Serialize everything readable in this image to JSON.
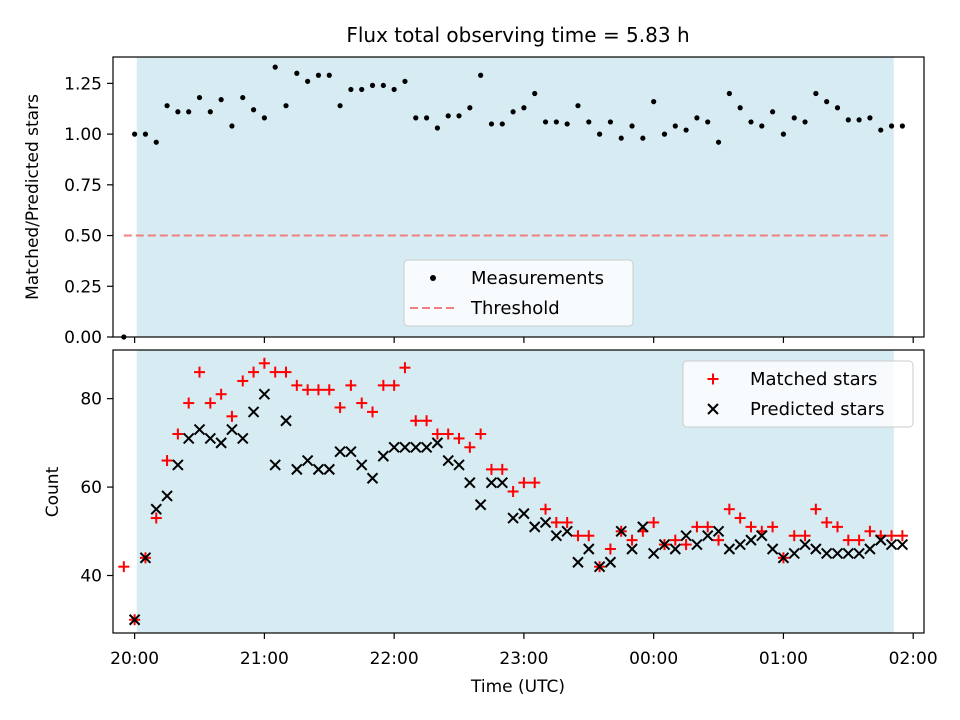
{
  "chart_data": {
    "type": "scatter",
    "title": "Flux total observing time = 5.83 h",
    "xlabel": "Time (UTC)",
    "x_ticks": [
      "20:00",
      "21:00",
      "22:00",
      "23:00",
      "00:00",
      "01:00",
      "02:00"
    ],
    "x_range": [
      "19:50",
      "02:05"
    ],
    "observing_window": [
      "20:01",
      "01:51"
    ],
    "colors": {
      "window": "#add8e6",
      "measurements": "#000000",
      "threshold": "#f08080",
      "matched": "#ff0000",
      "predicted": "#000000"
    },
    "top_panel": {
      "ylabel": "Matched/Predicted stars",
      "ylim": [
        0,
        1.38
      ],
      "y_ticks": [
        "0.00",
        "0.25",
        "0.50",
        "0.75",
        "1.00",
        "1.25"
      ],
      "legend_location": "lower center",
      "series": [
        {
          "name": "Measurements",
          "marker": "dot",
          "x": [
            "19:55",
            "20:00",
            "20:05",
            "20:10",
            "20:15",
            "20:20",
            "20:25",
            "20:30",
            "20:35",
            "20:40",
            "20:45",
            "20:50",
            "20:55",
            "21:00",
            "21:05",
            "21:10",
            "21:15",
            "21:20",
            "21:25",
            "21:30",
            "21:35",
            "21:40",
            "21:45",
            "21:50",
            "21:55",
            "22:00",
            "22:05",
            "22:10",
            "22:15",
            "22:20",
            "22:25",
            "22:30",
            "22:35",
            "22:40",
            "22:45",
            "22:50",
            "22:55",
            "23:00",
            "23:05",
            "23:10",
            "23:15",
            "23:20",
            "23:25",
            "23:30",
            "23:35",
            "23:40",
            "23:45",
            "23:50",
            "23:55",
            "00:00",
            "00:05",
            "00:10",
            "00:15",
            "00:20",
            "00:25",
            "00:30",
            "00:35",
            "00:40",
            "00:45",
            "00:50",
            "00:55",
            "01:00",
            "01:05",
            "01:10",
            "01:15",
            "01:20",
            "01:25",
            "01:30",
            "01:35",
            "01:40",
            "01:45",
            "01:50",
            "01:55"
          ],
          "y": [
            0.0,
            1.0,
            1.0,
            0.96,
            1.14,
            1.11,
            1.11,
            1.18,
            1.11,
            1.17,
            1.04,
            1.18,
            1.12,
            1.08,
            1.33,
            1.14,
            1.3,
            1.26,
            1.29,
            1.29,
            1.14,
            1.22,
            1.22,
            1.24,
            1.24,
            1.22,
            1.26,
            1.08,
            1.08,
            1.03,
            1.09,
            1.09,
            1.13,
            1.29,
            1.05,
            1.05,
            1.11,
            1.13,
            1.2,
            1.06,
            1.06,
            1.05,
            1.14,
            1.06,
            1.0,
            1.06,
            0.98,
            1.04,
            0.98,
            1.16,
            1.0,
            1.04,
            1.02,
            1.08,
            1.06,
            0.96,
            1.2,
            1.13,
            1.06,
            1.04,
            1.11,
            1.0,
            1.08,
            1.06,
            1.2,
            1.16,
            1.13,
            1.07,
            1.07,
            1.08,
            1.02,
            1.04,
            1.04
          ]
        },
        {
          "name": "Threshold",
          "style": "dashed",
          "x": [
            "19:55",
            "01:50"
          ],
          "y": [
            0.5,
            0.5
          ]
        }
      ]
    },
    "bottom_panel": {
      "ylabel": "Count",
      "ylim": [
        27,
        91
      ],
      "y_ticks": [
        "40",
        "60",
        "80"
      ],
      "legend_location": "upper right",
      "series": [
        {
          "name": "Matched stars",
          "marker": "plus",
          "x": [
            "19:55",
            "20:00",
            "20:05",
            "20:10",
            "20:15",
            "20:20",
            "20:25",
            "20:30",
            "20:35",
            "20:40",
            "20:45",
            "20:50",
            "20:55",
            "21:00",
            "21:05",
            "21:10",
            "21:15",
            "21:20",
            "21:25",
            "21:30",
            "21:35",
            "21:40",
            "21:45",
            "21:50",
            "21:55",
            "22:00",
            "22:05",
            "22:10",
            "22:15",
            "22:20",
            "22:25",
            "22:30",
            "22:35",
            "22:40",
            "22:45",
            "22:50",
            "22:55",
            "23:00",
            "23:05",
            "23:10",
            "23:15",
            "23:20",
            "23:25",
            "23:30",
            "23:35",
            "23:40",
            "23:45",
            "23:50",
            "23:55",
            "00:00",
            "00:05",
            "00:10",
            "00:15",
            "00:20",
            "00:25",
            "00:30",
            "00:35",
            "00:40",
            "00:45",
            "00:50",
            "00:55",
            "01:00",
            "01:05",
            "01:10",
            "01:15",
            "01:20",
            "01:25",
            "01:30",
            "01:35",
            "01:40",
            "01:45",
            "01:50",
            "01:55"
          ],
          "y": [
            42,
            30,
            44,
            53,
            66,
            72,
            79,
            86,
            79,
            81,
            76,
            84,
            86,
            88,
            86,
            86,
            83,
            82,
            82,
            82,
            78,
            83,
            79,
            77,
            83,
            83,
            87,
            75,
            75,
            72,
            72,
            71,
            69,
            72,
            64,
            64,
            59,
            61,
            61,
            55,
            52,
            52,
            49,
            49,
            42,
            46,
            50,
            48,
            50,
            52,
            47,
            48,
            47,
            51,
            51,
            48,
            55,
            53,
            51,
            50,
            51,
            44,
            49,
            49,
            55,
            52,
            51,
            48,
            48,
            50,
            49,
            49,
            49
          ]
        },
        {
          "name": "Predicted stars",
          "marker": "x",
          "x": [
            "20:00",
            "20:05",
            "20:10",
            "20:15",
            "20:20",
            "20:25",
            "20:30",
            "20:35",
            "20:40",
            "20:45",
            "20:50",
            "20:55",
            "21:00",
            "21:05",
            "21:10",
            "21:15",
            "21:20",
            "21:25",
            "21:30",
            "21:35",
            "21:40",
            "21:45",
            "21:50",
            "21:55",
            "22:00",
            "22:05",
            "22:10",
            "22:15",
            "22:20",
            "22:25",
            "22:30",
            "22:35",
            "22:40",
            "22:45",
            "22:50",
            "22:55",
            "23:00",
            "23:05",
            "23:10",
            "23:15",
            "23:20",
            "23:25",
            "23:30",
            "23:35",
            "23:40",
            "23:45",
            "23:50",
            "23:55",
            "00:00",
            "00:05",
            "00:10",
            "00:15",
            "00:20",
            "00:25",
            "00:30",
            "00:35",
            "00:40",
            "00:45",
            "00:50",
            "00:55",
            "01:00",
            "01:05",
            "01:10",
            "01:15",
            "01:20",
            "01:25",
            "01:30",
            "01:35",
            "01:40",
            "01:45",
            "01:50",
            "01:55"
          ],
          "y": [
            30,
            44,
            55,
            58,
            65,
            71,
            73,
            71,
            70,
            73,
            71,
            77,
            81,
            65,
            75,
            64,
            66,
            64,
            64,
            68,
            68,
            65,
            62,
            67,
            69,
            69,
            69,
            69,
            70,
            66,
            65,
            61,
            56,
            61,
            61,
            53,
            54,
            51,
            52,
            49,
            50,
            43,
            46,
            42,
            43,
            50,
            46,
            51,
            45,
            47,
            46,
            49,
            47,
            49,
            50,
            46,
            47,
            48,
            49,
            46,
            44,
            45,
            47,
            46,
            45,
            45,
            45,
            45,
            46,
            48,
            47,
            47
          ]
        }
      ]
    }
  }
}
